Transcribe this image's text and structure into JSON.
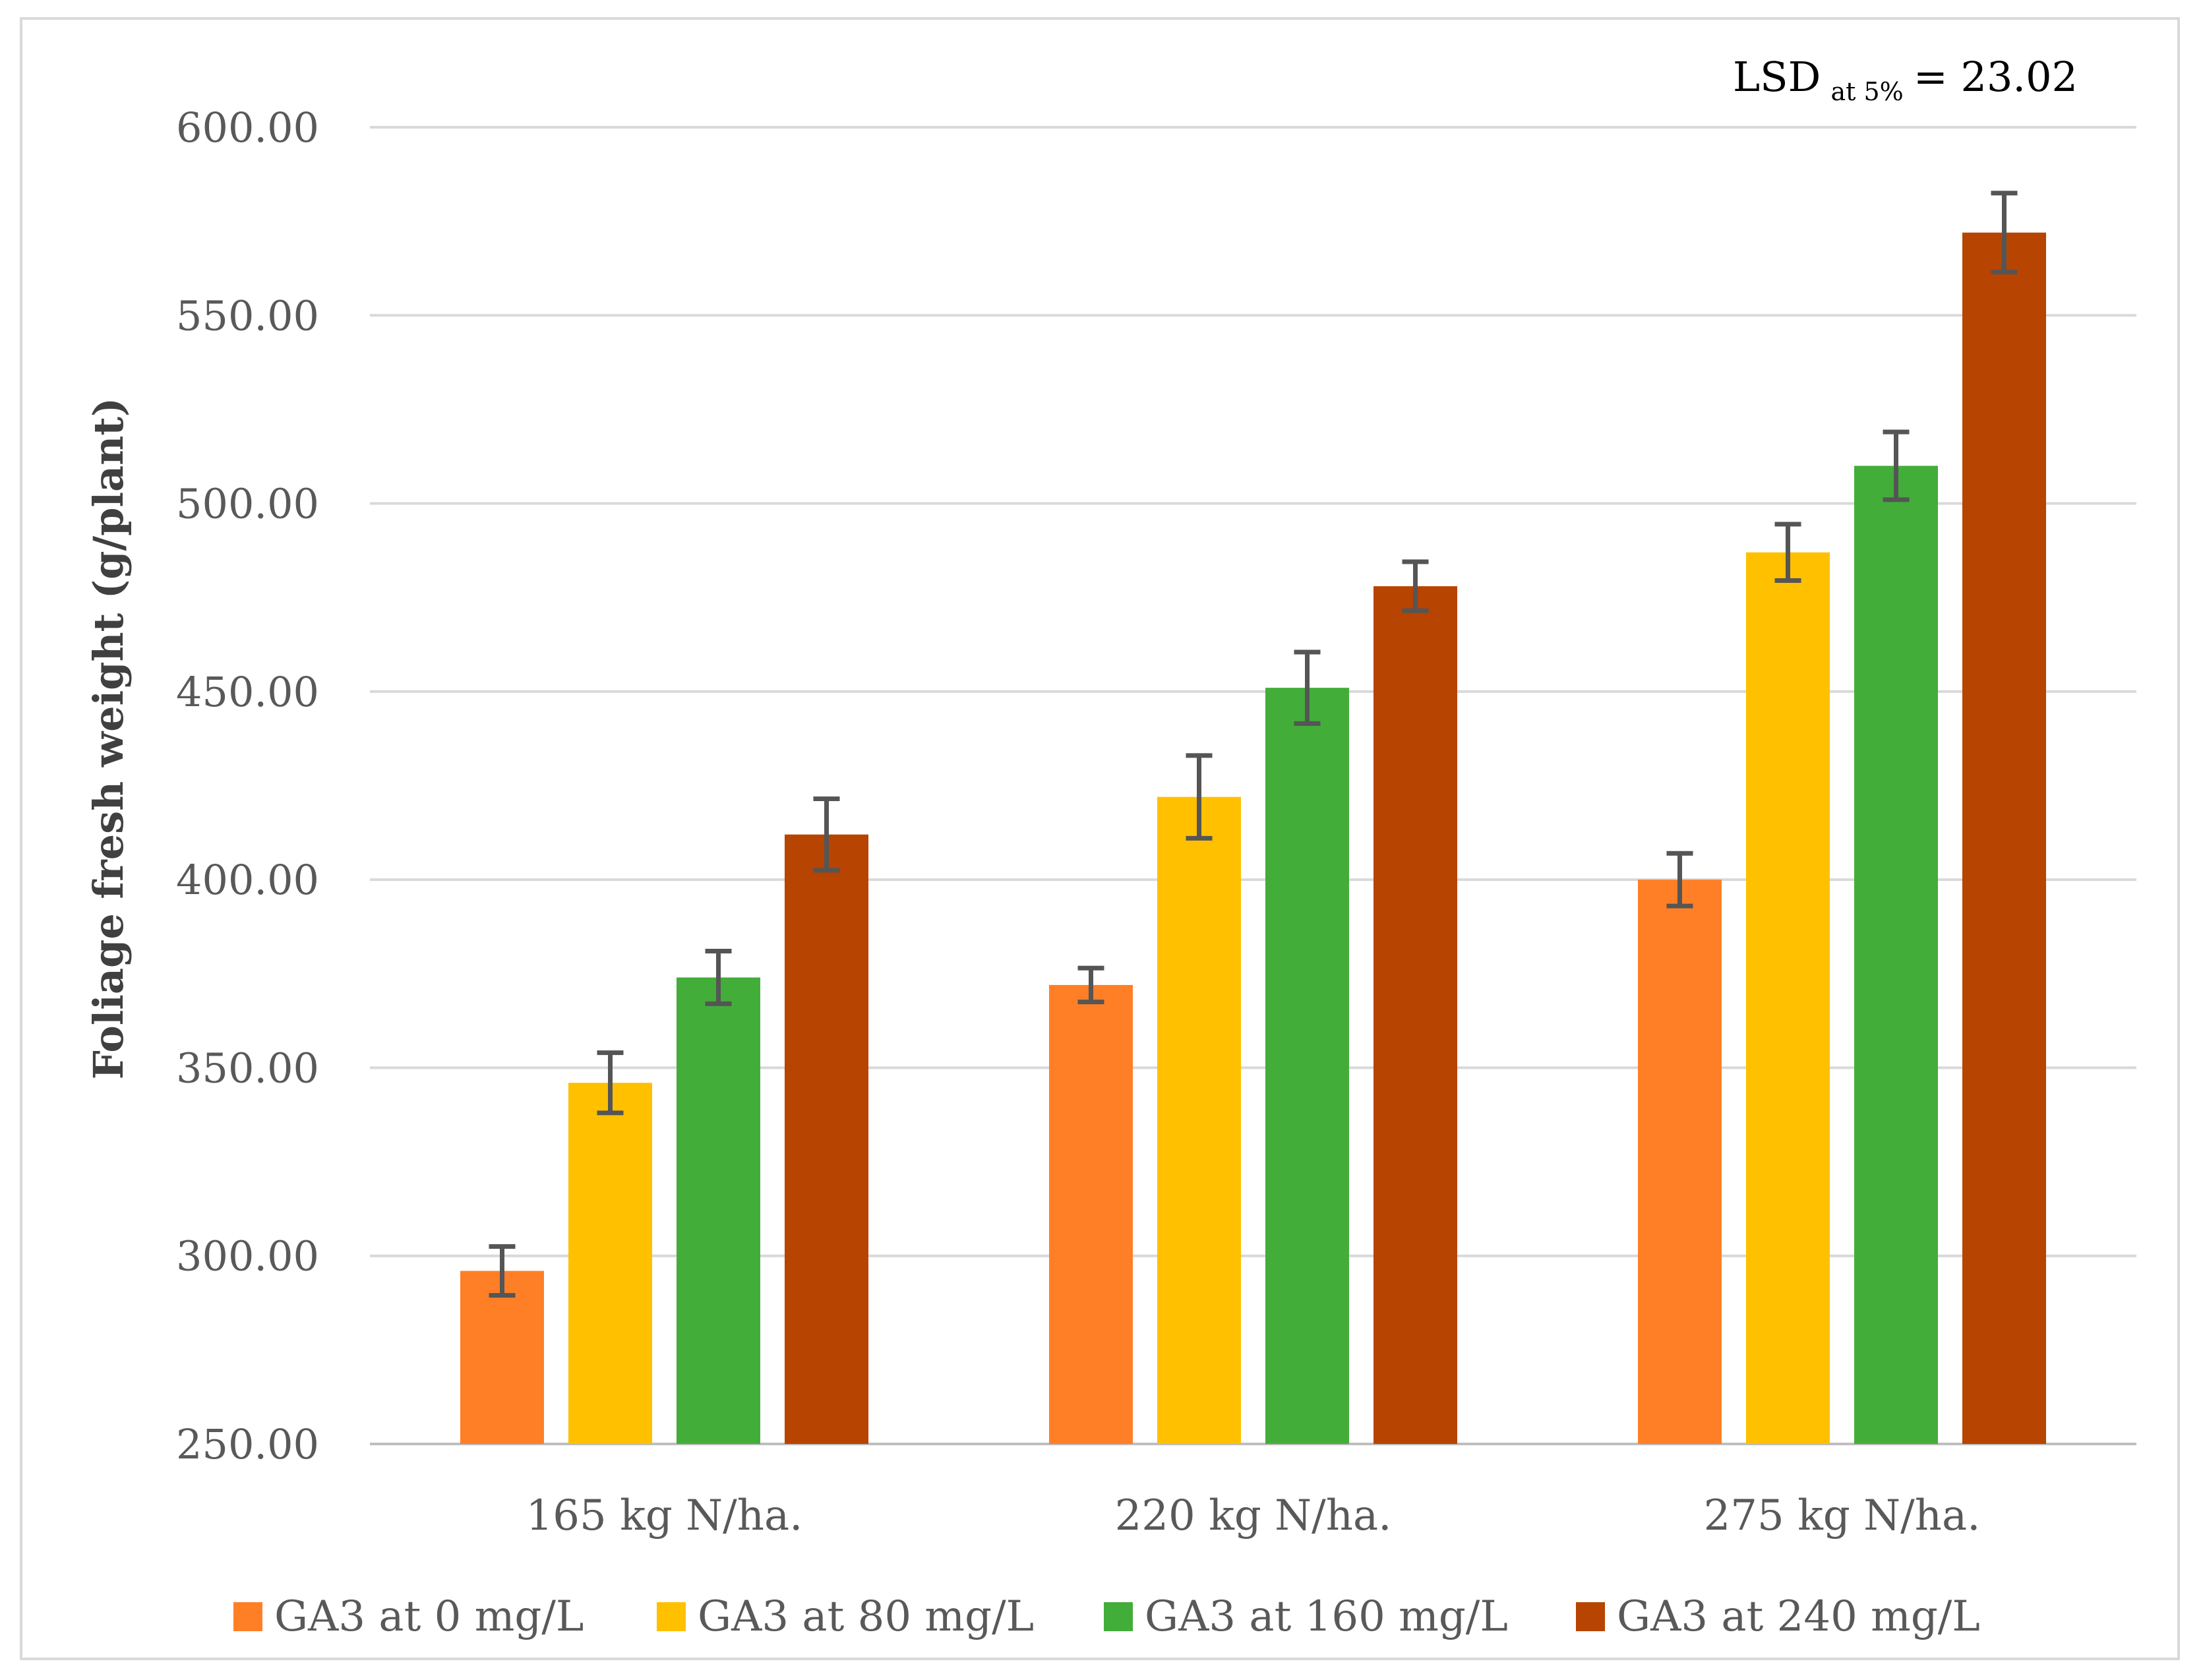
{
  "chart_data": {
    "type": "bar",
    "title": "",
    "xlabel": "",
    "ylabel": "Foliage fresh weight (g/plant)",
    "ylim": [
      250,
      600
    ],
    "yticks": [
      250,
      300,
      350,
      400,
      450,
      500,
      550,
      600
    ],
    "ytick_labels": [
      "250.00",
      "300.00",
      "350.00",
      "400.00",
      "450.00",
      "500.00",
      "550.00",
      "600.00"
    ],
    "grid": true,
    "legend_position": "bottom",
    "categories": [
      "165 kg N/ha.",
      "220 kg N/ha.",
      "275 kg N/ha."
    ],
    "series": [
      {
        "name": "GA3 at 0 mg/L",
        "color": "#ff7f27",
        "values": [
          296,
          372,
          400
        ],
        "errors": [
          6.5,
          4.5,
          7
        ]
      },
      {
        "name": "GA3 at 80 mg/L",
        "color": "#ffc000",
        "values": [
          346,
          422,
          487
        ],
        "errors": [
          8,
          11,
          7.5
        ]
      },
      {
        "name": "GA3 at 160 mg/L",
        "color": "#43ad3a",
        "values": [
          374,
          451,
          510
        ],
        "errors": [
          7,
          9.5,
          9
        ]
      },
      {
        "name": "GA3 at 240 mg/L",
        "color": "#b74400",
        "values": [
          412,
          478,
          572
        ],
        "errors": [
          9.5,
          6.5,
          10.5
        ]
      }
    ],
    "error_bar_color": "#555555",
    "annotation": {
      "main": "LSD",
      "sub": "at 5%",
      "tail": "= 23.02"
    }
  }
}
